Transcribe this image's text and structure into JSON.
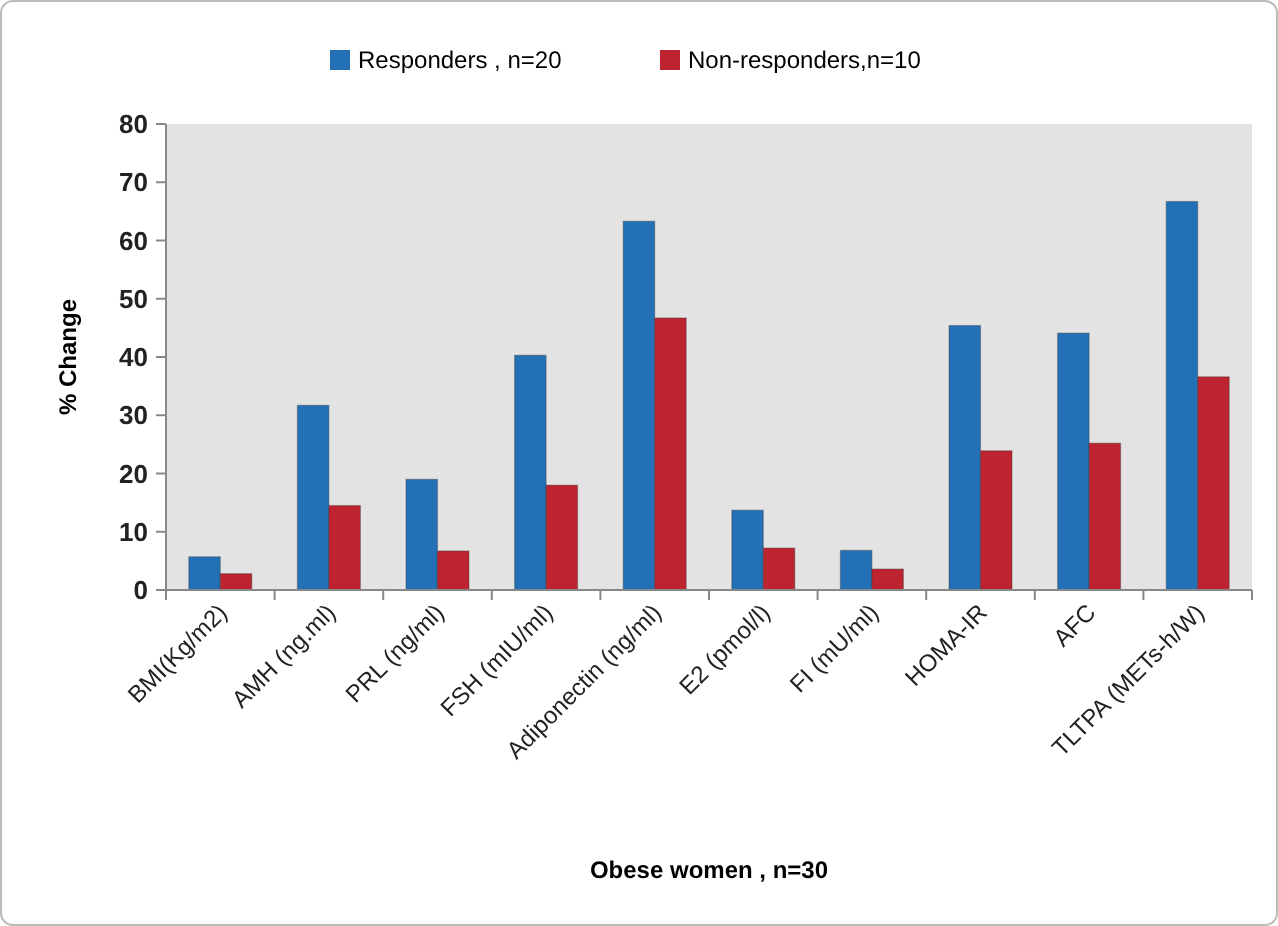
{
  "chart_data": {
    "type": "bar",
    "xlabel": "Obese women , n=30",
    "ylabel": "% Change",
    "categories": [
      "BMI(Kg/m2)",
      "AMH (ng.ml)",
      "PRL (ng/ml)",
      "FSH (mIU/ml)",
      "Adiponectin (ng/ml)",
      "E2 (pmol/l)",
      "FI (mU/ml)",
      "HOMA-IR",
      "AFC",
      "TLTPA (METs-h/W)"
    ],
    "series": [
      {
        "name": "Responders , n=20",
        "color": "#2470b6",
        "values": [
          5.7,
          31.7,
          19,
          40.3,
          63.3,
          13.7,
          6.8,
          45.4,
          44.1,
          66.7
        ]
      },
      {
        "name": "Non-responders,n=10",
        "color": "#be2330",
        "values": [
          2.8,
          14.5,
          6.7,
          18,
          46.7,
          7.2,
          3.6,
          23.9,
          25.2,
          36.6
        ]
      }
    ],
    "ylim": [
      0,
      80
    ],
    "yticks": [
      0,
      10,
      20,
      30,
      40,
      50,
      60,
      70,
      80
    ],
    "grid": false,
    "legend": "top"
  }
}
